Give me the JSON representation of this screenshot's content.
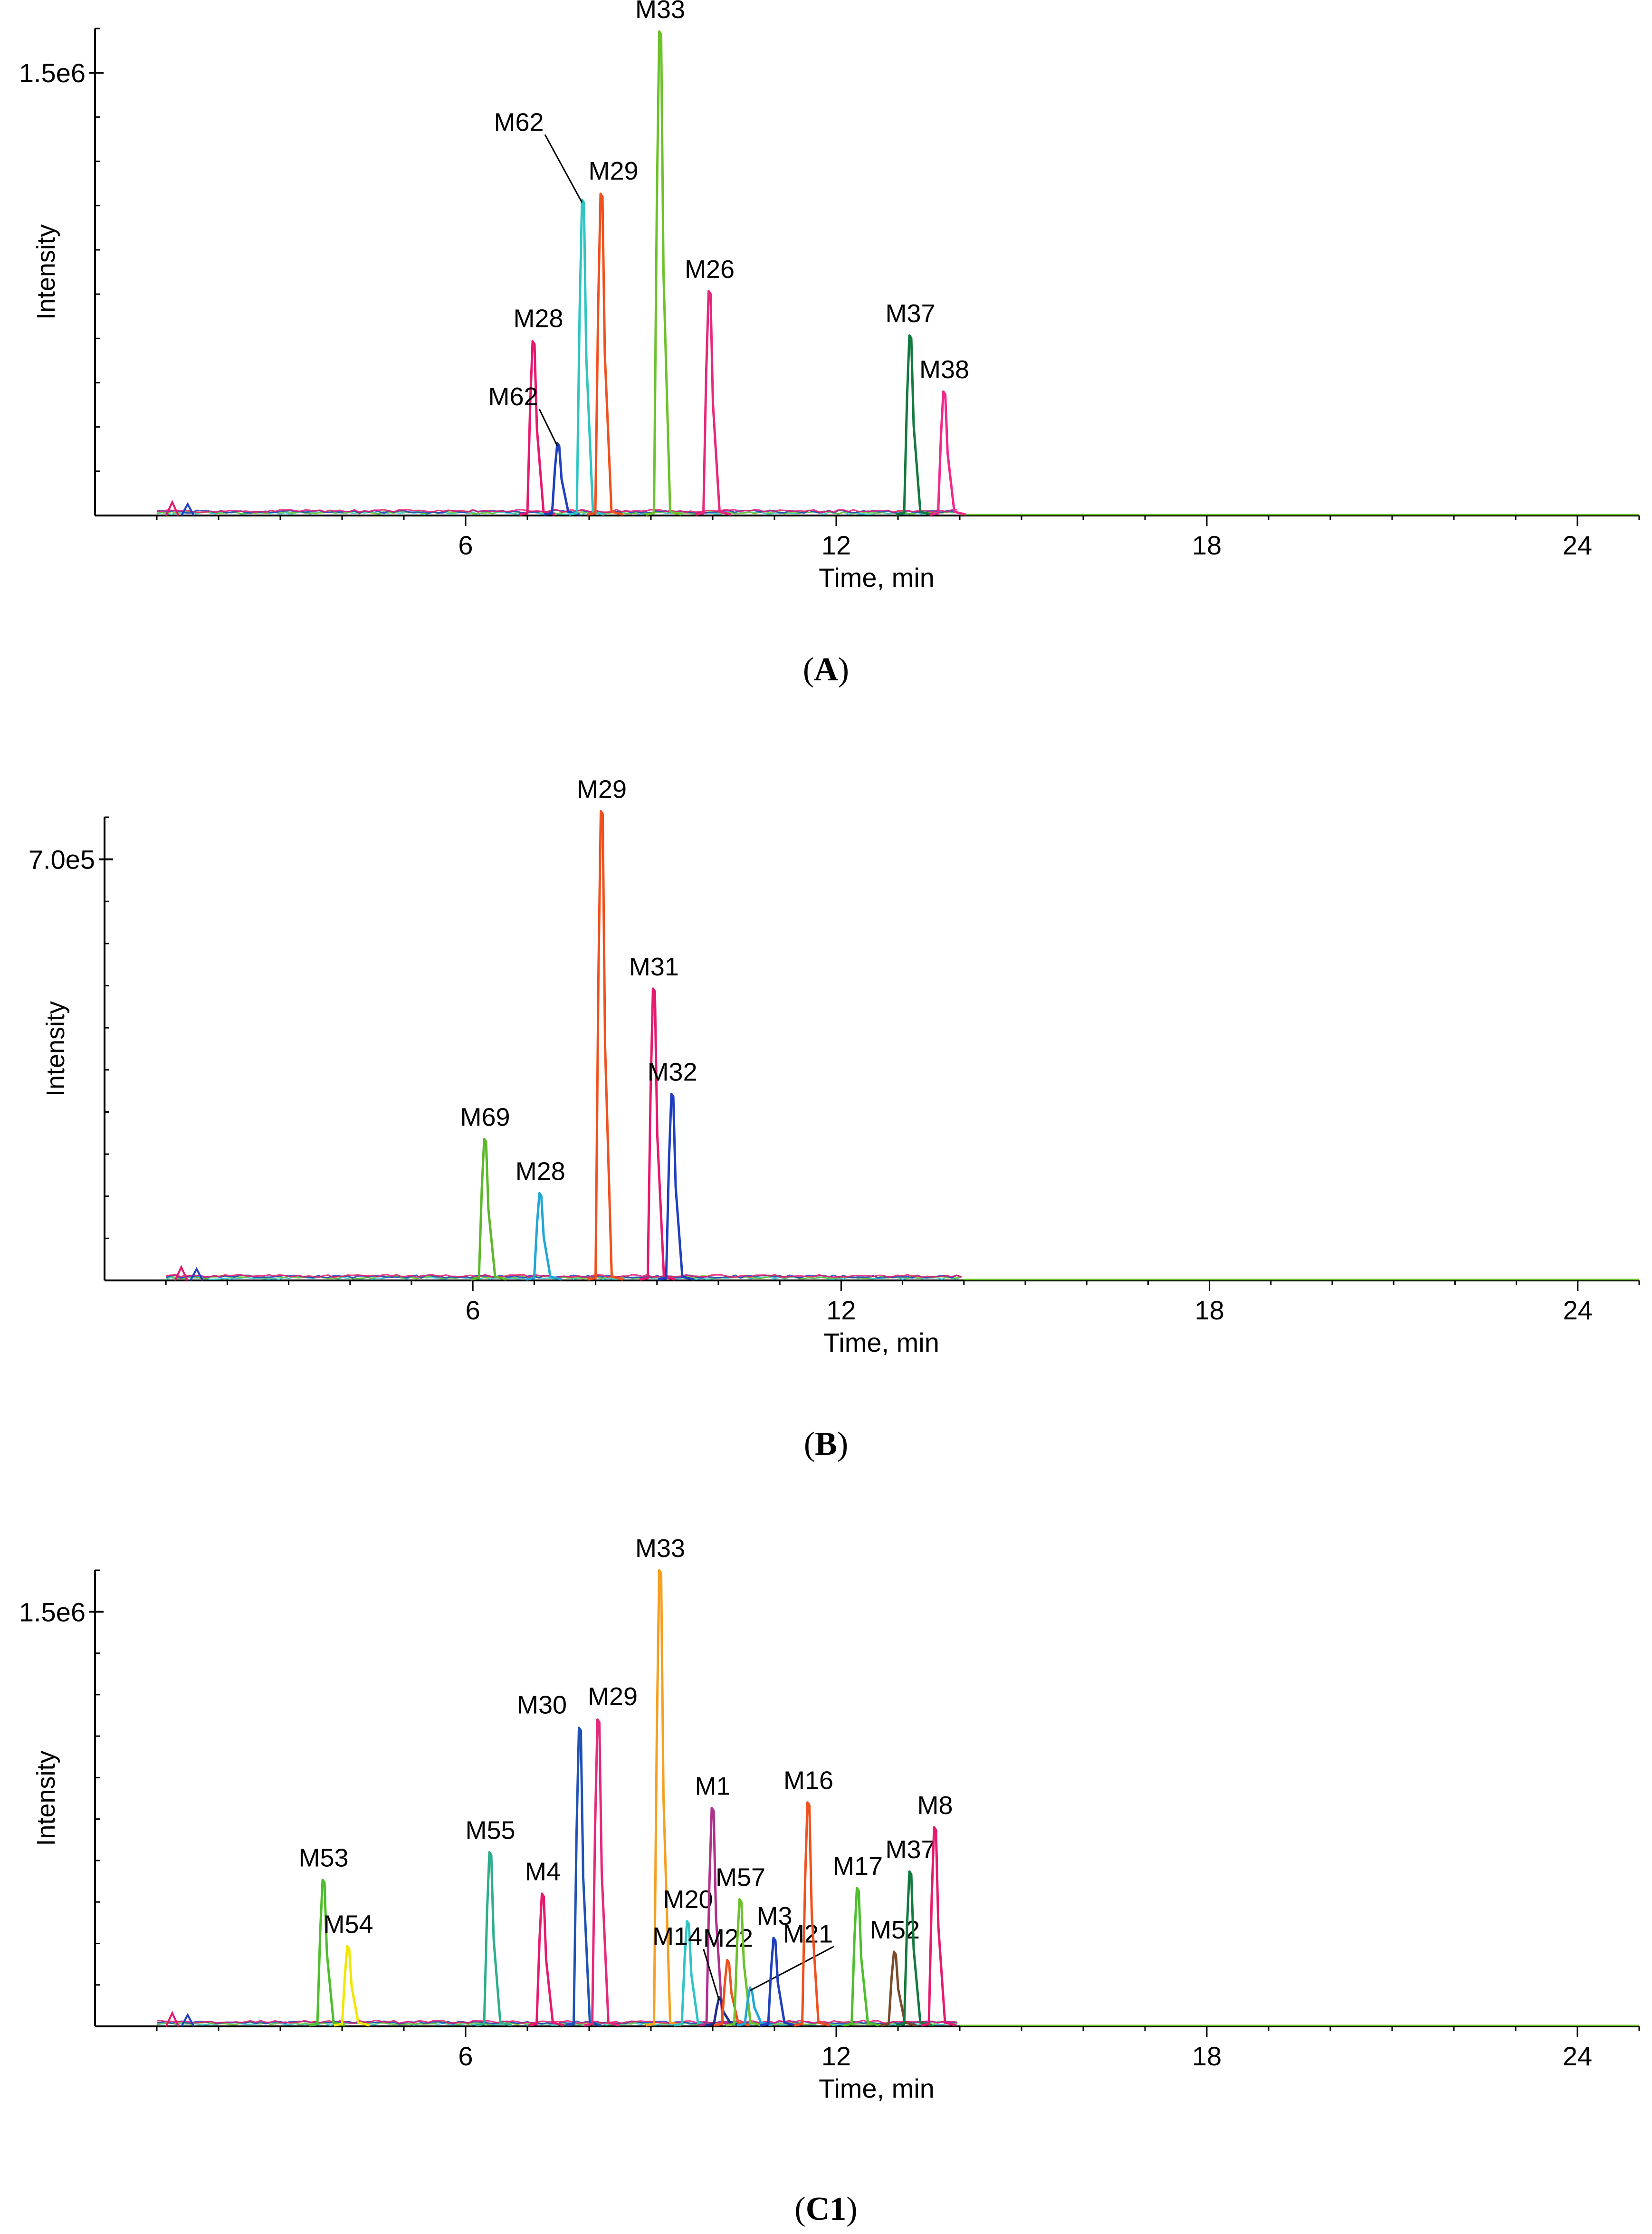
{
  "chart_data": [
    {
      "type": "line",
      "panel_label": "A",
      "xlabel": "Time, min",
      "ylabel": "Intensity",
      "xlim": [
        0,
        25
      ],
      "ylim": [
        0,
        1650000
      ],
      "xticks": [
        6,
        12,
        18,
        24
      ],
      "ytick_label": "1.5e6",
      "ytick_value": 1500000,
      "series": [
        {
          "name": "M28",
          "x": 7.1,
          "y": 590000,
          "color": "#e6196e",
          "label": true
        },
        {
          "name": "M62",
          "x": 7.5,
          "y": 245000,
          "color": "#1f3fbf",
          "label": true
        },
        {
          "name": "M62",
          "x": 7.9,
          "y": 1070000,
          "color": "#2ec4c4",
          "label": true
        },
        {
          "name": "M29",
          "x": 8.2,
          "y": 1090000,
          "color": "#f0501e",
          "label": true
        },
        {
          "name": "M33",
          "x": 9.15,
          "y": 1640000,
          "color": "#6cc22a",
          "label": true
        },
        {
          "name": "M26",
          "x": 9.95,
          "y": 760000,
          "color": "#e6287a",
          "label": true
        },
        {
          "name": "M37",
          "x": 13.2,
          "y": 610000,
          "color": "#127a3e",
          "label": true
        },
        {
          "name": "M38",
          "x": 13.75,
          "y": 420000,
          "color": "#f0288c",
          "label": true
        }
      ]
    },
    {
      "type": "line",
      "panel_label": "B",
      "xlabel": "Time, min",
      "ylabel": "Intensity",
      "xlim": [
        0,
        25
      ],
      "ylim": [
        0,
        770000
      ],
      "xticks": [
        6,
        12,
        18,
        24
      ],
      "ytick_label": "7.0e5",
      "ytick_value": 700000,
      "series": [
        {
          "name": "M69",
          "x": 6.2,
          "y": 235000,
          "color": "#5cb82a",
          "label": true
        },
        {
          "name": "M28",
          "x": 7.1,
          "y": 145000,
          "color": "#1fa7d6",
          "label": true
        },
        {
          "name": "M29",
          "x": 8.1,
          "y": 780000,
          "color": "#f0501e",
          "label": true
        },
        {
          "name": "M31",
          "x": 8.95,
          "y": 485000,
          "color": "#e6196e",
          "label": true
        },
        {
          "name": "M32",
          "x": 9.25,
          "y": 310000,
          "color": "#1f3fbf",
          "label": true
        }
      ]
    },
    {
      "type": "line",
      "panel_label": "C1",
      "xlabel": "Time, min",
      "ylabel": "Intensity",
      "xlim": [
        0,
        25
      ],
      "ylim": [
        0,
        1650000
      ],
      "xticks": [
        6,
        12,
        18,
        24
      ],
      "ytick_label": "1.5e6",
      "ytick_value": 1500000,
      "series": [
        {
          "name": "M53",
          "x": 3.7,
          "y": 530000,
          "color": "#4cbf2a",
          "label": true
        },
        {
          "name": "M54",
          "x": 4.1,
          "y": 290000,
          "color": "#f2e600",
          "label": true
        },
        {
          "name": "M55",
          "x": 6.4,
          "y": 630000,
          "color": "#2eae8c",
          "label": true
        },
        {
          "name": "M4",
          "x": 7.25,
          "y": 480000,
          "color": "#e6196e",
          "label": true
        },
        {
          "name": "M30",
          "x": 7.85,
          "y": 1080000,
          "color": "#1f52b4",
          "label": true
        },
        {
          "name": "M29",
          "x": 8.15,
          "y": 1110000,
          "color": "#e6287a",
          "label": true
        },
        {
          "name": "M33",
          "x": 9.15,
          "y": 1650000,
          "color": "#f5a020",
          "label": true
        },
        {
          "name": "M20",
          "x": 9.6,
          "y": 380000,
          "color": "#2ec4c4",
          "label": true
        },
        {
          "name": "M1",
          "x": 10.0,
          "y": 790000,
          "color": "#b0308c",
          "label": true
        },
        {
          "name": "M14",
          "x": 10.12,
          "y": 105000,
          "color": "#1a2f8a",
          "label": true
        },
        {
          "name": "M22",
          "x": 10.25,
          "y": 240000,
          "color": "#f0501e",
          "label": true
        },
        {
          "name": "M57",
          "x": 10.45,
          "y": 460000,
          "color": "#6cc22a",
          "label": true
        },
        {
          "name": "M21",
          "x": 10.62,
          "y": 140000,
          "color": "#1fa7d6",
          "label": true
        },
        {
          "name": "M3",
          "x": 11.0,
          "y": 320000,
          "color": "#1f3fbf",
          "label": true
        },
        {
          "name": "M16",
          "x": 11.55,
          "y": 810000,
          "color": "#f0501e",
          "label": true
        },
        {
          "name": "M17",
          "x": 12.35,
          "y": 500000,
          "color": "#4cbf2a",
          "label": true
        },
        {
          "name": "M52",
          "x": 12.95,
          "y": 270000,
          "color": "#7a4a2a",
          "label": true
        },
        {
          "name": "M37",
          "x": 13.2,
          "y": 560000,
          "color": "#127a3e",
          "label": true
        },
        {
          "name": "M8",
          "x": 13.6,
          "y": 720000,
          "color": "#e6196e",
          "label": true
        }
      ]
    }
  ],
  "captions": {
    "A": "A",
    "B": "B",
    "C1": "C1"
  }
}
